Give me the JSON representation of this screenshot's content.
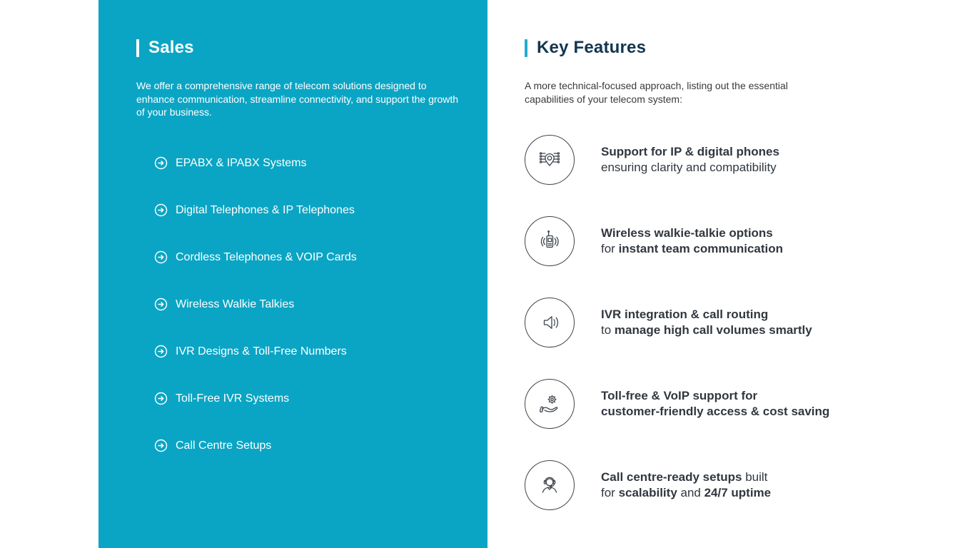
{
  "left_panel": {
    "title": "Sales",
    "description": "We offer a comprehensive range of telecom solutions designed to enhance communication, streamline connectivity, and support the growth of your business.",
    "items": [
      "EPABX & IPABX Systems",
      "Digital Telephones & IP Telephones",
      "Cordless Telephones & VOIP Cards",
      "Wireless Walkie Talkies",
      "IVR Designs & Toll-Free Numbers",
      "Toll-Free IVR Systems",
      "Call Centre Setups"
    ]
  },
  "right_panel": {
    "title": "Key Features",
    "description": "A more technical-focused approach, listing out the essential capabilities of your telecom system:",
    "features": [
      {
        "icon": "ip-network-icon",
        "lines": [
          [
            {
              "t": "Support for IP & digital phones",
              "b": true
            }
          ],
          [
            {
              "t": "ensuring clarity and compatibility",
              "b": false
            }
          ]
        ]
      },
      {
        "icon": "walkie-talkie-icon",
        "lines": [
          [
            {
              "t": "Wireless walkie-talkie options",
              "b": true
            }
          ],
          [
            {
              "t": "for ",
              "b": false
            },
            {
              "t": "instant team communication",
              "b": true
            }
          ]
        ]
      },
      {
        "icon": "speaker-icon",
        "lines": [
          [
            {
              "t": "IVR integration & call routing",
              "b": true
            }
          ],
          [
            {
              "t": "to ",
              "b": false
            },
            {
              "t": "manage high call volumes smartly",
              "b": true
            }
          ]
        ]
      },
      {
        "icon": "hand-gear-icon",
        "lines": [
          [
            {
              "t": "Toll-free & VoIP support for",
              "b": true
            }
          ],
          [
            {
              "t": "customer-friendly access & cost saving",
              "b": true
            }
          ]
        ]
      },
      {
        "icon": "support-agent-icon",
        "lines": [
          [
            {
              "t": "Call centre-ready setups",
              "b": true
            },
            {
              "t": " built",
              "b": false
            }
          ],
          [
            {
              "t": "for ",
              "b": false
            },
            {
              "t": "scalability",
              "b": true
            },
            {
              "t": " and ",
              "b": false
            },
            {
              "t": "24/7 uptime",
              "b": true
            }
          ]
        ]
      }
    ]
  },
  "colors": {
    "left_panel_background": "#0aa5c4",
    "left_text": "#ffffff",
    "right_heading": "#12374e",
    "accent_bar_cyan": "#1fadcf",
    "body_text": "#3a3a3a",
    "feature_text": "#31373f",
    "icon_stroke": "#3f444d"
  }
}
